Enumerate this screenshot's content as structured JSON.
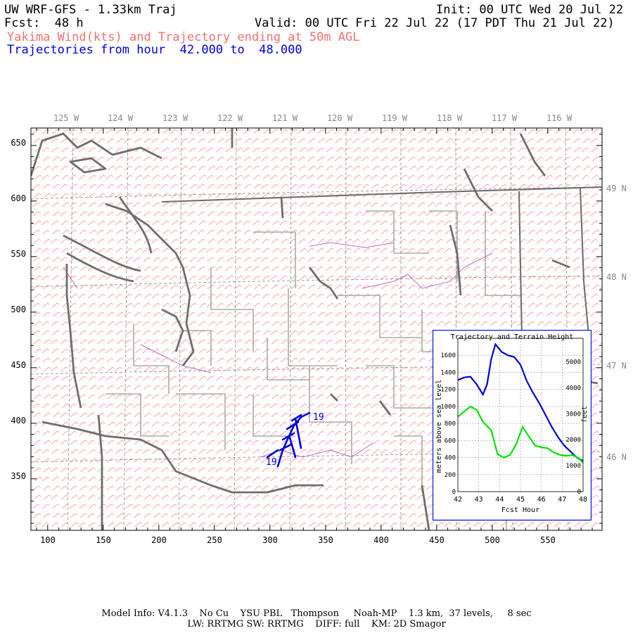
{
  "header": {
    "title": "UW WRF-GFS - 1.33km Traj",
    "init": "Init: 00 UTC Wed 20 Jul 22",
    "fcst": "Fcst:  48 h",
    "valid": "Valid: 00 UTC Fri 22 Jul 22 (17 PDT Thu 21 Jul 22)",
    "wind_label": "Yakima Wind(kts) and Trajectory ending at 50m AGL",
    "traj_label": "Trajectories from hour  42.000 to  48.000"
  },
  "map": {
    "lon_labels": [
      "125 W",
      "124 W",
      "123 W",
      "122 W",
      "121 W",
      "120 W",
      "119 W",
      "118 W",
      "117 W",
      "116 W"
    ],
    "lat_labels": [
      "49 N",
      "48 N",
      "47 N",
      "46 N"
    ],
    "x_ticks": [
      "100",
      "150",
      "200",
      "250",
      "300",
      "350",
      "400",
      "450",
      "500",
      "550"
    ],
    "y_ticks": [
      "650",
      "600",
      "550",
      "500",
      "450",
      "400",
      "350"
    ],
    "trajectory_end_label": "19",
    "trajectory_start_label": "19",
    "colors": {
      "wind_barbs": "#ff6b6b",
      "coast": "#6e6e6e",
      "border": "#555555",
      "county": "#aaaaaa",
      "water": "#c06ac0",
      "trajectory": "#0000dd"
    }
  },
  "inset": {
    "title": "Trajectory and Terrain Height",
    "ylabel_left": "meters above sea level",
    "ylabel_right": "feet",
    "xlabel": "Fcst Hour",
    "left_ticks": [
      "0",
      "200",
      "400",
      "600",
      "800",
      "1000",
      "1200",
      "1400",
      "1600"
    ],
    "right_ticks": [
      "0",
      "1000",
      "2000",
      "3000",
      "4000",
      "5000"
    ],
    "x_ticks": [
      "42",
      "43",
      "44",
      "45",
      "46",
      "47",
      "48"
    ]
  },
  "chart_data": {
    "type": "line",
    "title": "Trajectory and Terrain Height",
    "xlabel": "Fcst Hour",
    "ylabel": "meters above sea level",
    "xlim": [
      42,
      48
    ],
    "ylim": [
      0,
      1800
    ],
    "series": [
      {
        "name": "Trajectory height",
        "color": "#0000dd",
        "x": [
          42.0,
          42.3,
          42.6,
          42.9,
          43.2,
          43.4,
          43.6,
          43.8,
          44.1,
          44.4,
          44.7,
          45.0,
          45.3,
          45.6,
          45.9,
          46.2,
          46.5,
          46.8,
          47.1,
          47.4,
          47.7,
          48.0
        ],
        "y": [
          1310,
          1340,
          1350,
          1260,
          1140,
          1260,
          1560,
          1730,
          1640,
          1600,
          1580,
          1490,
          1300,
          1160,
          1040,
          900,
          760,
          640,
          540,
          470,
          400,
          360
        ]
      },
      {
        "name": "Terrain height",
        "color": "#00e400",
        "x": [
          42.0,
          42.3,
          42.6,
          42.9,
          43.2,
          43.6,
          43.9,
          44.2,
          44.5,
          44.8,
          45.1,
          45.4,
          45.7,
          46.0,
          46.3,
          46.6,
          46.9,
          47.2,
          47.5,
          47.8,
          48.0
        ],
        "y": [
          880,
          940,
          1000,
          960,
          820,
          720,
          440,
          400,
          430,
          560,
          760,
          650,
          540,
          520,
          510,
          460,
          430,
          420,
          430,
          390,
          340
        ]
      }
    ]
  },
  "footer": {
    "line1": "Model Info: V4.1.3    No Cu    YSU PBL   Thompson     Noah-MP    1.3 km,  37 levels,     8 sec",
    "line2": "LW: RRTMG SW: RRTMG    DIFF: full    KM: 2D Smagor"
  }
}
